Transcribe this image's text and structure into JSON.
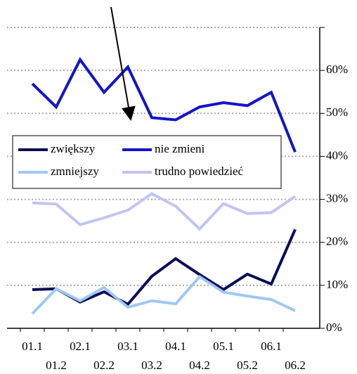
{
  "chart_data": {
    "type": "line",
    "categories": [
      "01.1",
      "01.2",
      "02.1",
      "02.2",
      "03.1",
      "03.2",
      "04.1",
      "04.2",
      "05.1",
      "05.2",
      "06.1",
      "06.2"
    ],
    "series": [
      {
        "name": "zwiększy",
        "color": "#0c0c55",
        "values": [
          9.0,
          9.2,
          6.1,
          8.5,
          5.6,
          12.1,
          16.2,
          12.5,
          9.0,
          12.6,
          10.3,
          23.0
        ]
      },
      {
        "name": "nie zmieni",
        "color": "#1414c8",
        "values": [
          56.9,
          51.5,
          62.5,
          54.9,
          60.8,
          49.0,
          48.5,
          51.5,
          52.5,
          51.8,
          54.9,
          41.0
        ]
      },
      {
        "name": "zmniejszy",
        "color": "#a0c8f0",
        "values": [
          3.4,
          9.2,
          6.4,
          9.5,
          4.9,
          6.4,
          5.7,
          12.0,
          8.4,
          7.5,
          6.7,
          4.1
        ]
      },
      {
        "name": "trudno powiedzieć",
        "color": "#c4c4f2",
        "values": [
          29.2,
          28.9,
          24.1,
          25.7,
          27.5,
          31.3,
          28.4,
          23.1,
          29.0,
          26.7,
          26.9,
          30.7
        ]
      }
    ],
    "ylim": [
      0,
      70
    ],
    "yticks": [
      {
        "value": 0,
        "label": "0%"
      },
      {
        "value": 10,
        "label": "10%"
      },
      {
        "value": 20,
        "label": "20%"
      },
      {
        "value": 30,
        "label": "30%"
      },
      {
        "value": 40,
        "label": "40%"
      },
      {
        "value": 50,
        "label": "50%"
      },
      {
        "value": 60,
        "label": "60%"
      }
    ],
    "grid": true
  }
}
